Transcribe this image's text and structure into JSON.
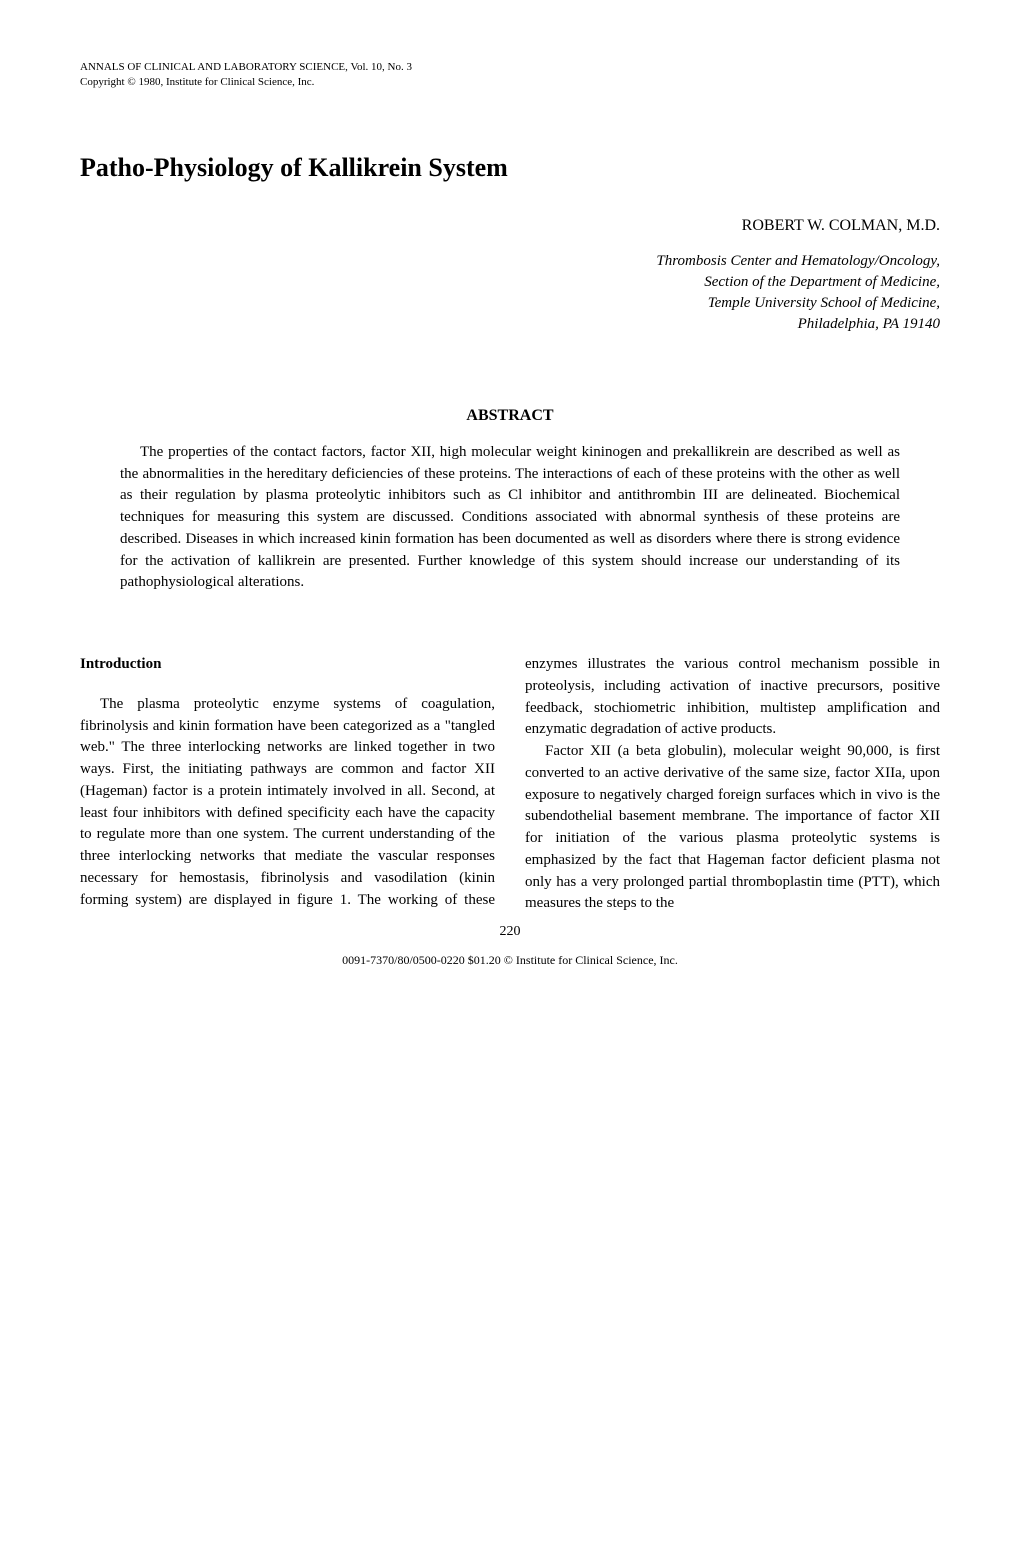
{
  "header": {
    "journal_line": "ANNALS OF CLINICAL AND LABORATORY SCIENCE, Vol. 10, No. 3",
    "copyright_line": "Copyright © 1980, Institute for Clinical Science, Inc."
  },
  "title": "Patho-Physiology of Kallikrein System",
  "author": "ROBERT W. COLMAN, M.D.",
  "affiliation": {
    "line1": "Thrombosis Center and Hematology/Oncology,",
    "line2": "Section of the Department of Medicine,",
    "line3": "Temple University School of Medicine,",
    "line4": "Philadelphia, PA 19140"
  },
  "abstract": {
    "heading": "ABSTRACT",
    "text": "The properties of the contact factors, factor XII, high molecular weight kininogen and prekallikrein are described as well as the abnormalities in the hereditary deficiencies of these proteins. The interactions of each of these proteins with the other as well as their regulation by plasma proteolytic inhibitors such as Cl inhibitor and antithrombin III are delineated. Biochemical techniques for measuring this system are discussed. Conditions associated with abnormal synthesis of these proteins are described. Diseases in which increased kinin formation has been documented as well as disorders where there is strong evidence for the activation of kallikrein are presented. Further knowledge of this system should increase our understanding of its pathophysiological alterations."
  },
  "intro": {
    "heading": "Introduction",
    "p1": "The plasma proteolytic enzyme systems of coagulation, fibrinolysis and kinin formation have been categorized as a \"tangled web.\" The three interlocking networks are linked together in two ways. First, the initiating pathways are common and factor XII (Hageman) factor is a protein intimately involved in all. Second, at least four inhibitors with defined specificity each have the capacity to regulate more than one system. The current understanding of the three interlocking networks that mediate the vascular responses necessary for hemostasis, fibrinolysis and vasodilation (kinin forming system) are displayed in figure 1. The working of these enzymes illustrates the various control mechanism possible in proteolysis, including activation of inactive precursors, positive feedback, stochiometric inhibition, multistep amplification and enzymatic degradation of active products.",
    "p2": "Factor XII (a beta globulin), molecular weight 90,000, is first converted to an active derivative of the same size, factor XIIa, upon exposure to negatively charged foreign surfaces which in vivo is the subendothelial basement membrane. The importance of factor XII for initiation of the various plasma proteolytic systems is emphasized by the fact that Hageman factor deficient plasma not only has a very prolonged partial thromboplastin time (PTT), which measures the steps to the"
  },
  "footer": {
    "page_number": "220",
    "copyright": "0091-7370/80/0500-0220 $01.20 © Institute for Clinical Science, Inc."
  }
}
